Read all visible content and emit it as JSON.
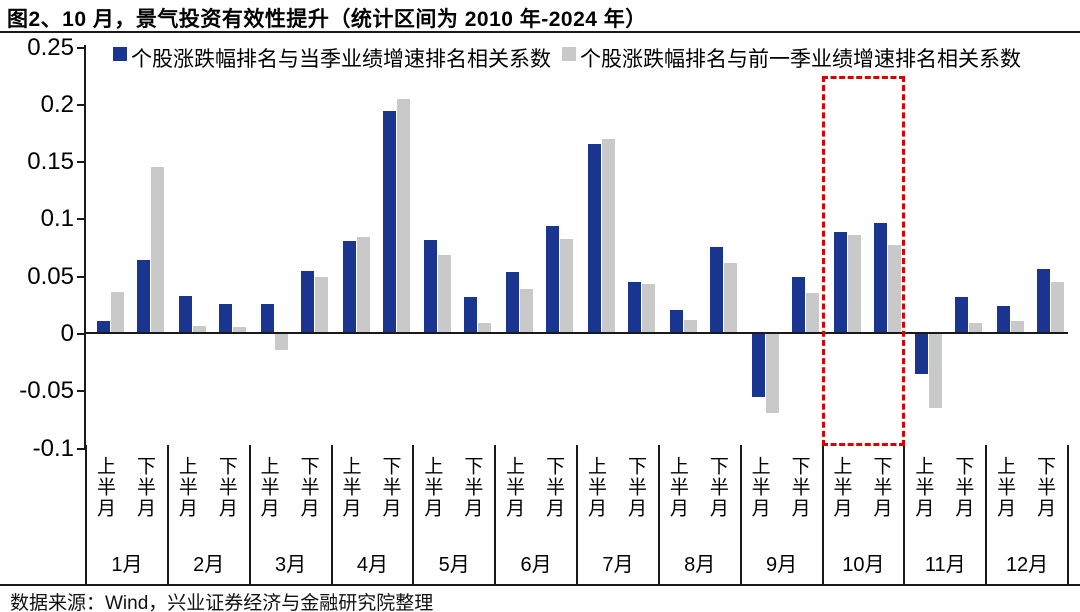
{
  "figure": {
    "title": "图2、10 月，景气投资有效性提升（统计区间为 2010 年-2024 年）",
    "source": "数据来源：Wind，兴业证券经济与金融研究院整理"
  },
  "chart_data": {
    "type": "bar",
    "title": "图2、10 月，景气投资有效性提升（统计区间为 2010 年-2024 年）",
    "legend_position": "top",
    "grid": false,
    "ylim": [
      -0.1,
      0.25
    ],
    "yticks": [
      0.25,
      0.2,
      0.15,
      0.1,
      0.05,
      0,
      -0.05,
      -0.1
    ],
    "ytick_labels": [
      "0.25",
      "0.2",
      "0.15",
      "0.1",
      "0.05",
      "0",
      "-0.05",
      "-0.1"
    ],
    "months": [
      "1月",
      "2月",
      "3月",
      "4月",
      "5月",
      "6月",
      "7月",
      "8月",
      "9月",
      "10月",
      "11月",
      "12月"
    ],
    "half_month_labels": [
      "上半月",
      "下半月"
    ],
    "series": [
      {
        "name": "个股涨跌幅排名与当季业绩增速排名相关系数",
        "color": "#1a3590",
        "values": [
          0.011,
          0.065,
          0.033,
          0.026,
          0.026,
          0.055,
          0.081,
          0.195,
          0.082,
          0.032,
          0.054,
          0.094,
          0.166,
          0.045,
          0.021,
          0.076,
          -0.055,
          0.05,
          0.089,
          0.097,
          -0.035,
          0.032,
          0.024,
          0.057
        ]
      },
      {
        "name": "个股涨跌幅排名与前一季业绩增速排名相关系数",
        "color": "#c9c9c9",
        "values": [
          0.037,
          0.146,
          0.007,
          0.006,
          -0.014,
          0.05,
          0.085,
          0.205,
          0.069,
          0.01,
          0.039,
          0.083,
          0.17,
          0.044,
          0.012,
          0.062,
          -0.069,
          0.036,
          0.086,
          0.078,
          -0.065,
          0.01,
          0.011,
          0.045
        ]
      }
    ],
    "highlight_box": {
      "label": "10月",
      "month_index": 9,
      "color": "#d80000"
    }
  }
}
